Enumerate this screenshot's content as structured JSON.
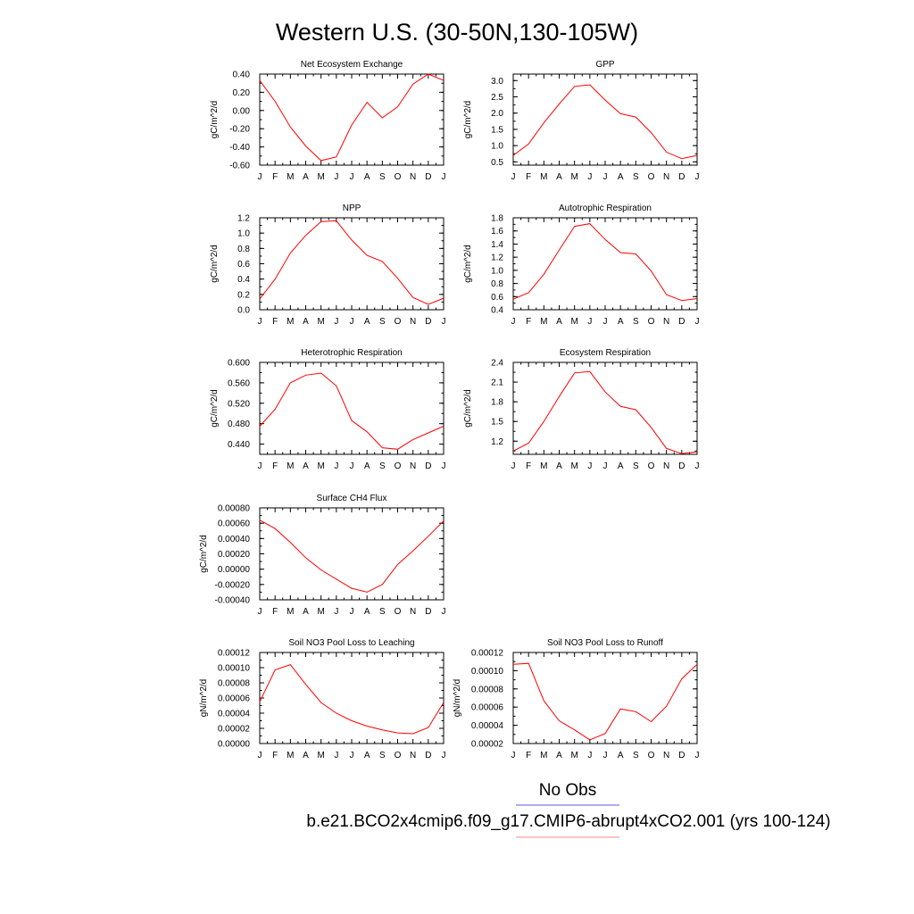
{
  "title": "Western U.S. (30-50N,130-105W)",
  "legend": {
    "entries": [
      {
        "label": "No Obs",
        "color": "#5b5bd6"
      },
      {
        "label": "b.e21.BCO2x4cmip6.f09_g17.CMIP6-abrupt4xCO2.001 (yrs 100-124)",
        "color": "#f08a8a"
      }
    ]
  },
  "chart_data": [
    {
      "type": "line",
      "title": "Net Ecosystem Exchange",
      "ylabel": "gC/m^2/d",
      "x": [
        "J",
        "F",
        "M",
        "A",
        "M",
        "J",
        "J",
        "A",
        "S",
        "O",
        "N",
        "D",
        "J"
      ],
      "ylim": [
        -0.6,
        0.4
      ],
      "yticks": [
        "0.40",
        "0.20",
        "0.00",
        "-0.20",
        "-0.40",
        "-0.60"
      ],
      "series": [
        {
          "color": "#ff0000",
          "values": [
            0.33,
            0.1,
            -0.18,
            -0.39,
            -0.55,
            -0.51,
            -0.16,
            0.09,
            -0.08,
            0.04,
            0.29,
            0.4,
            0.33
          ]
        }
      ]
    },
    {
      "type": "line",
      "title": "GPP",
      "ylabel": "gC/m^2/d",
      "x": [
        "J",
        "F",
        "M",
        "A",
        "M",
        "J",
        "J",
        "A",
        "S",
        "O",
        "N",
        "D",
        "J"
      ],
      "ylim": [
        0.4,
        3.2
      ],
      "yticks": [
        "3.0",
        "2.5",
        "2.0",
        "1.5",
        "1.0",
        "0.5"
      ],
      "series": [
        {
          "color": "#ff0000",
          "values": [
            0.7,
            1.05,
            1.7,
            2.28,
            2.82,
            2.87,
            2.4,
            1.98,
            1.88,
            1.4,
            0.8,
            0.6,
            0.7
          ]
        }
      ]
    },
    {
      "type": "line",
      "title": "NPP",
      "ylabel": "gC/m^2/d",
      "x": [
        "J",
        "F",
        "M",
        "A",
        "M",
        "J",
        "J",
        "A",
        "S",
        "O",
        "N",
        "D",
        "J"
      ],
      "ylim": [
        0.0,
        1.2
      ],
      "yticks": [
        "1.2",
        "1.0",
        "0.8",
        "0.6",
        "0.4",
        "0.2",
        "0.0"
      ],
      "series": [
        {
          "color": "#ff0000",
          "values": [
            0.14,
            0.4,
            0.74,
            0.97,
            1.15,
            1.16,
            0.91,
            0.71,
            0.63,
            0.41,
            0.16,
            0.07,
            0.15
          ]
        }
      ]
    },
    {
      "type": "line",
      "title": "Autotrophic Respiration",
      "ylabel": "gC/m^2/d",
      "x": [
        "J",
        "F",
        "M",
        "A",
        "M",
        "J",
        "J",
        "A",
        "S",
        "O",
        "N",
        "D",
        "J"
      ],
      "ylim": [
        0.4,
        1.8
      ],
      "yticks": [
        "1.8",
        "1.6",
        "1.4",
        "1.2",
        "1.0",
        "0.8",
        "0.6",
        "0.4"
      ],
      "series": [
        {
          "color": "#ff0000",
          "values": [
            0.56,
            0.66,
            0.94,
            1.31,
            1.67,
            1.71,
            1.47,
            1.27,
            1.25,
            0.99,
            0.63,
            0.54,
            0.57
          ]
        }
      ]
    },
    {
      "type": "line",
      "title": "Heterotrophic Respiration",
      "ylabel": "gC/m^2/d",
      "x": [
        "J",
        "F",
        "M",
        "A",
        "M",
        "J",
        "J",
        "A",
        "S",
        "O",
        "N",
        "D",
        "J"
      ],
      "ylim": [
        0.42,
        0.6
      ],
      "yticks": [
        "0.600",
        "0.560",
        "0.520",
        "0.480",
        "0.440"
      ],
      "series": [
        {
          "color": "#ff0000",
          "values": [
            0.475,
            0.508,
            0.56,
            0.575,
            0.579,
            0.554,
            0.486,
            0.464,
            0.433,
            0.43,
            0.449,
            0.462,
            0.475
          ]
        }
      ]
    },
    {
      "type": "line",
      "title": "Ecosystem Respiration",
      "ylabel": "gC/m^2/d",
      "x": [
        "J",
        "F",
        "M",
        "A",
        "M",
        "J",
        "J",
        "A",
        "S",
        "O",
        "N",
        "D",
        "J"
      ],
      "ylim": [
        1.0,
        2.4
      ],
      "yticks": [
        "2.4",
        "2.1",
        "1.8",
        "1.5",
        "1.2"
      ],
      "series": [
        {
          "color": "#ff0000",
          "values": [
            1.05,
            1.17,
            1.5,
            1.88,
            2.24,
            2.26,
            1.95,
            1.73,
            1.68,
            1.41,
            1.09,
            1.01,
            1.04
          ]
        }
      ]
    },
    {
      "type": "line",
      "title": "Surface CH4 Flux",
      "ylabel": "gC/m^2/d",
      "x": [
        "J",
        "F",
        "M",
        "A",
        "M",
        "J",
        "J",
        "A",
        "S",
        "O",
        "N",
        "D",
        "J"
      ],
      "ylim": [
        -0.0004,
        0.0008
      ],
      "yticks": [
        "0.00080",
        "0.00060",
        "0.00040",
        "0.00020",
        "0.00000",
        "-0.00020",
        "-0.00040"
      ],
      "series": [
        {
          "color": "#ff0000",
          "values": [
            0.00064,
            0.00053,
            0.00035,
            0.00015,
            -1e-05,
            -0.00013,
            -0.00025,
            -0.0003,
            -0.0002,
            6e-05,
            0.00024,
            0.00043,
            0.00063
          ]
        }
      ]
    },
    {
      "type": "line",
      "title": "Soil NO3 Pool Loss to Leaching",
      "ylabel": "gN/m^2/d",
      "x": [
        "J",
        "F",
        "M",
        "A",
        "M",
        "J",
        "J",
        "A",
        "S",
        "O",
        "N",
        "D",
        "J"
      ],
      "ylim": [
        0.0,
        0.00012
      ],
      "yticks": [
        "0.00012",
        "0.00010",
        "0.00008",
        "0.00006",
        "0.00004",
        "0.00002",
        "0.00000"
      ],
      "series": [
        {
          "color": "#ff0000",
          "values": [
            5.5e-05,
            9.7e-05,
            0.000104,
            7.8e-05,
            5.4e-05,
            4e-05,
            3e-05,
            2.3e-05,
            1.8e-05,
            1.4e-05,
            1.3e-05,
            2.1e-05,
            5.4e-05
          ]
        }
      ]
    },
    {
      "type": "line",
      "title": "Soil NO3 Pool Loss to Runoff",
      "ylabel": "gN/m^2/d",
      "x": [
        "J",
        "F",
        "M",
        "A",
        "M",
        "J",
        "J",
        "A",
        "S",
        "O",
        "N",
        "D",
        "J"
      ],
      "ylim": [
        2e-05,
        0.00012
      ],
      "yticks": [
        "0.00012",
        "0.00010",
        "0.00008",
        "0.00006",
        "0.00004",
        "0.00002"
      ],
      "series": [
        {
          "color": "#ff0000",
          "values": [
            0.000107,
            0.000108,
            6.7e-05,
            4.5e-05,
            3.5e-05,
            2.4e-05,
            3.1e-05,
            5.8e-05,
            5.5e-05,
            4.4e-05,
            6.1e-05,
            9.1e-05,
            0.000107
          ]
        }
      ]
    }
  ]
}
